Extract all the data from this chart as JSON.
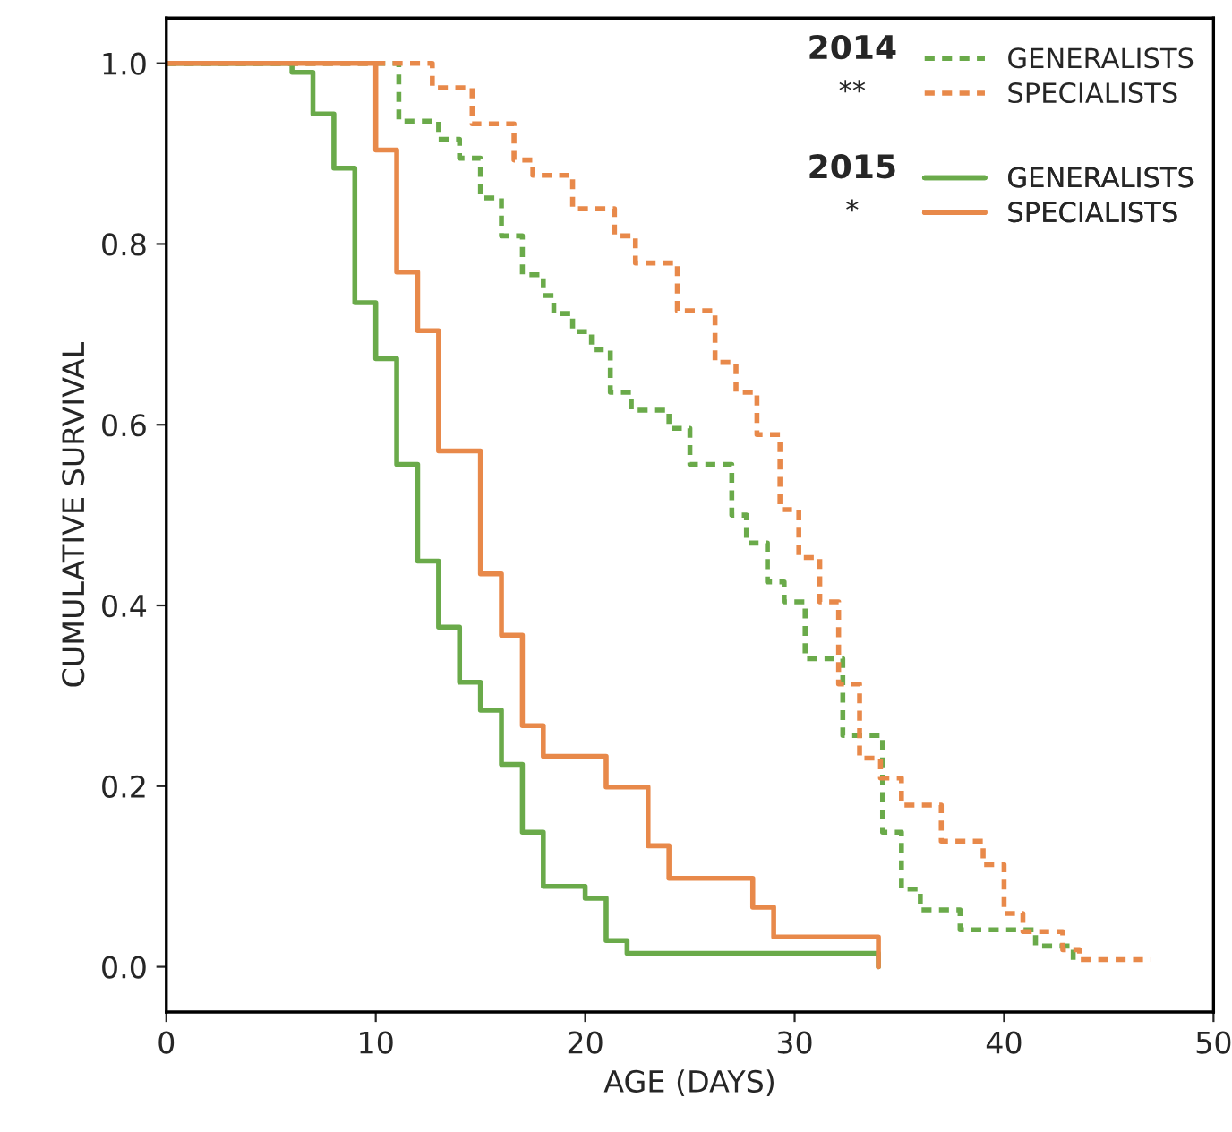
{
  "chart_data": {
    "type": "step",
    "xlabel": "AGE (DAYS)",
    "ylabel": "CUMULATIVE SURVIVAL",
    "xlim": [
      0,
      50
    ],
    "ylim": [
      -0.05,
      1.05
    ],
    "xticks": [
      0,
      10,
      20,
      30,
      40,
      50
    ],
    "yticks": [
      {
        "value": 0,
        "label": "0.0"
      },
      {
        "value": 0.2,
        "label": "0.2"
      },
      {
        "value": 0.4,
        "label": "0.4"
      },
      {
        "value": 0.6,
        "label": "0.6"
      },
      {
        "value": 0.8,
        "label": "0.8"
      },
      {
        "value": 1,
        "label": "1.0"
      }
    ],
    "grid": false,
    "legend": "top right",
    "annotations": [
      "2014",
      "**",
      "2015",
      "*"
    ],
    "series": [
      {
        "name": "GENERALISTS",
        "color": "#6aaa4a",
        "line_style": "dashed",
        "x": [
          0,
          11.1,
          13,
          14,
          15,
          16,
          17,
          18,
          18.5,
          19.4,
          20.3,
          21.2,
          22.2,
          24,
          25,
          27,
          27.7,
          28.7,
          29.5,
          30.5,
          32.3,
          34.2,
          35.1,
          36,
          37.9,
          41.5,
          43.3
        ],
        "values": [
          1.0,
          0.936,
          0.916,
          0.895,
          0.851,
          0.809,
          0.766,
          0.743,
          0.723,
          0.703,
          0.683,
          0.636,
          0.616,
          0.596,
          0.556,
          0.5,
          0.469,
          0.426,
          0.404,
          0.341,
          0.256,
          0.149,
          0.086,
          0.063,
          0.041,
          0.023,
          0.0
        ]
      },
      {
        "name": "SPECIALISTS",
        "color": "#e8894a",
        "line_style": "dashed",
        "x": [
          0,
          12.7,
          14.6,
          16.6,
          17.5,
          19.4,
          21.4,
          22.4,
          24.4,
          26.2,
          27.2,
          28.2,
          29.3,
          30.2,
          31.2,
          32.1,
          33.1,
          34.1,
          35.1,
          37,
          39,
          40,
          40.9,
          42.8,
          43.6,
          47
        ],
        "values": [
          1.0,
          0.973,
          0.933,
          0.893,
          0.876,
          0.839,
          0.809,
          0.779,
          0.726,
          0.669,
          0.636,
          0.589,
          0.506,
          0.453,
          0.404,
          0.313,
          0.231,
          0.209,
          0.179,
          0.139,
          0.113,
          0.059,
          0.039,
          0.019,
          0.008,
          0.008
        ]
      },
      {
        "name": "GENERALISTS",
        "color": "#6aaa4a",
        "line_style": "solid",
        "x": [
          0,
          6,
          7,
          8,
          9,
          10,
          11,
          12,
          13,
          14,
          15,
          16,
          17,
          18,
          20,
          21,
          22,
          34,
          34
        ],
        "values": [
          1.0,
          0.99,
          0.944,
          0.884,
          0.735,
          0.673,
          0.556,
          0.449,
          0.376,
          0.315,
          0.284,
          0.224,
          0.149,
          0.089,
          0.076,
          0.029,
          0.015,
          0.015,
          0.0
        ]
      },
      {
        "name": "SPECIALISTS",
        "color": "#e8894a",
        "line_style": "solid",
        "x": [
          0,
          10,
          11,
          12,
          13,
          15,
          16,
          17,
          18,
          21,
          23,
          24,
          28,
          29,
          34,
          34
        ],
        "values": [
          1.0,
          0.904,
          0.769,
          0.704,
          0.571,
          0.435,
          0.367,
          0.267,
          0.233,
          0.199,
          0.134,
          0.098,
          0.066,
          0.033,
          0.033,
          0.0
        ]
      }
    ]
  }
}
